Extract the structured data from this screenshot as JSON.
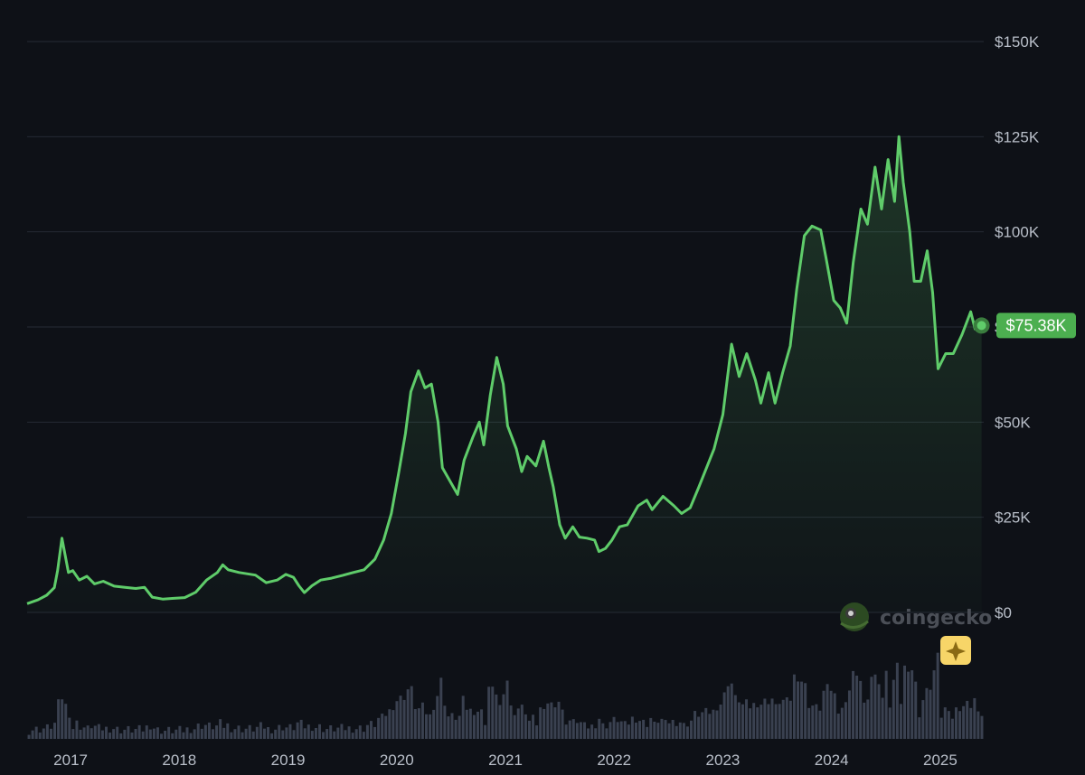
{
  "brand": {
    "name": "coingecko",
    "icon": "gecko-logo-icon"
  },
  "ai_badge": {
    "icon": "sparkle-icon",
    "color": "#f7d568"
  },
  "current_price": {
    "label": "$75.38K",
    "value": 75380,
    "color": "#4caf50"
  },
  "colors": {
    "line": "#5fcc6a",
    "grid": "#252a34",
    "volume": "#3a4150",
    "background": "#0e1117"
  },
  "chart_data": {
    "type": "line",
    "title": "",
    "xlabel": "",
    "ylabel": "",
    "x_ticks": [
      "2017",
      "2018",
      "2019",
      "2020",
      "2021",
      "2022",
      "2023",
      "2024",
      "2025"
    ],
    "y_ticks": [
      "$150K",
      "$125K",
      "$100K",
      "$75K",
      "$50K",
      "$25K",
      "$0"
    ],
    "y_tick_values": [
      150000,
      125000,
      100000,
      75000,
      50000,
      25000,
      0
    ],
    "ylim": [
      0,
      150000
    ],
    "xlim": [
      2016.6,
      2025.4
    ],
    "grid": true,
    "legend": "none",
    "series": [
      {
        "points": [
          [
            2016.6,
            2300
          ],
          [
            2016.7,
            3300
          ],
          [
            2016.78,
            4500
          ],
          [
            2016.85,
            6500
          ],
          [
            2016.88,
            11000
          ],
          [
            2016.92,
            19500
          ],
          [
            2016.95,
            15000
          ],
          [
            2016.98,
            10500
          ],
          [
            2017.02,
            11000
          ],
          [
            2017.08,
            8500
          ],
          [
            2017.15,
            9500
          ],
          [
            2017.22,
            7500
          ],
          [
            2017.3,
            8200
          ],
          [
            2017.4,
            6900
          ],
          [
            2017.5,
            6600
          ],
          [
            2017.6,
            6300
          ],
          [
            2017.68,
            6600
          ],
          [
            2017.75,
            4000
          ],
          [
            2017.85,
            3500
          ],
          [
            2017.95,
            3700
          ],
          [
            2018.05,
            3900
          ],
          [
            2018.15,
            5300
          ],
          [
            2018.25,
            8500
          ],
          [
            2018.35,
            10500
          ],
          [
            2018.4,
            12500
          ],
          [
            2018.45,
            11200
          ],
          [
            2018.55,
            10500
          ],
          [
            2018.7,
            9800
          ],
          [
            2018.8,
            7800
          ],
          [
            2018.9,
            8500
          ],
          [
            2018.98,
            10000
          ],
          [
            2019.05,
            9200
          ],
          [
            2019.1,
            7000
          ],
          [
            2019.15,
            5200
          ],
          [
            2019.22,
            7000
          ],
          [
            2019.3,
            8500
          ],
          [
            2019.4,
            9000
          ],
          [
            2019.5,
            9700
          ],
          [
            2019.6,
            10500
          ],
          [
            2019.7,
            11200
          ],
          [
            2019.8,
            14000
          ],
          [
            2019.88,
            19000
          ],
          [
            2019.95,
            26000
          ],
          [
            2020.02,
            37000
          ],
          [
            2020.08,
            47000
          ],
          [
            2020.13,
            58000
          ],
          [
            2020.2,
            63500
          ],
          [
            2020.26,
            59000
          ],
          [
            2020.32,
            60000
          ],
          [
            2020.38,
            50000
          ],
          [
            2020.42,
            38000
          ],
          [
            2020.5,
            34000
          ],
          [
            2020.56,
            31000
          ],
          [
            2020.62,
            40000
          ],
          [
            2020.7,
            46000
          ],
          [
            2020.76,
            50000
          ],
          [
            2020.8,
            44000
          ],
          [
            2020.86,
            57000
          ],
          [
            2020.92,
            67000
          ],
          [
            2020.98,
            60000
          ],
          [
            2021.02,
            49000
          ],
          [
            2021.1,
            43000
          ],
          [
            2021.15,
            37000
          ],
          [
            2021.2,
            41000
          ],
          [
            2021.28,
            38500
          ],
          [
            2021.35,
            45000
          ],
          [
            2021.4,
            38000
          ],
          [
            2021.44,
            33000
          ],
          [
            2021.5,
            23000
          ],
          [
            2021.55,
            19500
          ],
          [
            2021.62,
            22500
          ],
          [
            2021.68,
            19800
          ],
          [
            2021.75,
            19500
          ],
          [
            2021.82,
            19000
          ],
          [
            2021.86,
            16000
          ],
          [
            2021.92,
            16800
          ],
          [
            2021.98,
            19000
          ],
          [
            2022.05,
            22500
          ],
          [
            2022.12,
            23000
          ],
          [
            2022.22,
            28000
          ],
          [
            2022.3,
            29500
          ],
          [
            2022.35,
            27000
          ],
          [
            2022.45,
            30500
          ],
          [
            2022.55,
            28000
          ],
          [
            2022.62,
            26000
          ],
          [
            2022.7,
            27500
          ],
          [
            2022.78,
            33000
          ],
          [
            2022.85,
            38000
          ],
          [
            2022.92,
            43000
          ],
          [
            2023.0,
            52000
          ],
          [
            2023.08,
            70500
          ],
          [
            2023.15,
            62000
          ],
          [
            2023.22,
            68000
          ],
          [
            2023.3,
            61000
          ],
          [
            2023.35,
            55000
          ],
          [
            2023.42,
            63000
          ],
          [
            2023.48,
            55000
          ],
          [
            2023.55,
            63000
          ],
          [
            2023.62,
            70000
          ],
          [
            2023.68,
            85000
          ],
          [
            2023.75,
            99000
          ],
          [
            2023.82,
            101500
          ],
          [
            2023.9,
            100500
          ],
          [
            2023.95,
            93000
          ],
          [
            2024.02,
            82000
          ],
          [
            2024.08,
            80000
          ],
          [
            2024.14,
            76000
          ],
          [
            2024.2,
            92000
          ],
          [
            2024.27,
            106000
          ],
          [
            2024.33,
            102000
          ],
          [
            2024.4,
            117000
          ],
          [
            2024.46,
            106000
          ],
          [
            2024.52,
            119000
          ],
          [
            2024.58,
            108000
          ],
          [
            2024.62,
            125000
          ],
          [
            2024.66,
            113000
          ],
          [
            2024.72,
            100000
          ],
          [
            2024.76,
            87000
          ],
          [
            2024.82,
            87000
          ],
          [
            2024.88,
            95000
          ],
          [
            2024.93,
            84000
          ],
          [
            2024.98,
            64000
          ],
          [
            2025.05,
            68000
          ],
          [
            2025.12,
            68000
          ],
          [
            2025.2,
            73000
          ],
          [
            2025.28,
            79000
          ],
          [
            2025.32,
            74500
          ],
          [
            2025.38,
            75380
          ]
        ]
      }
    ]
  }
}
